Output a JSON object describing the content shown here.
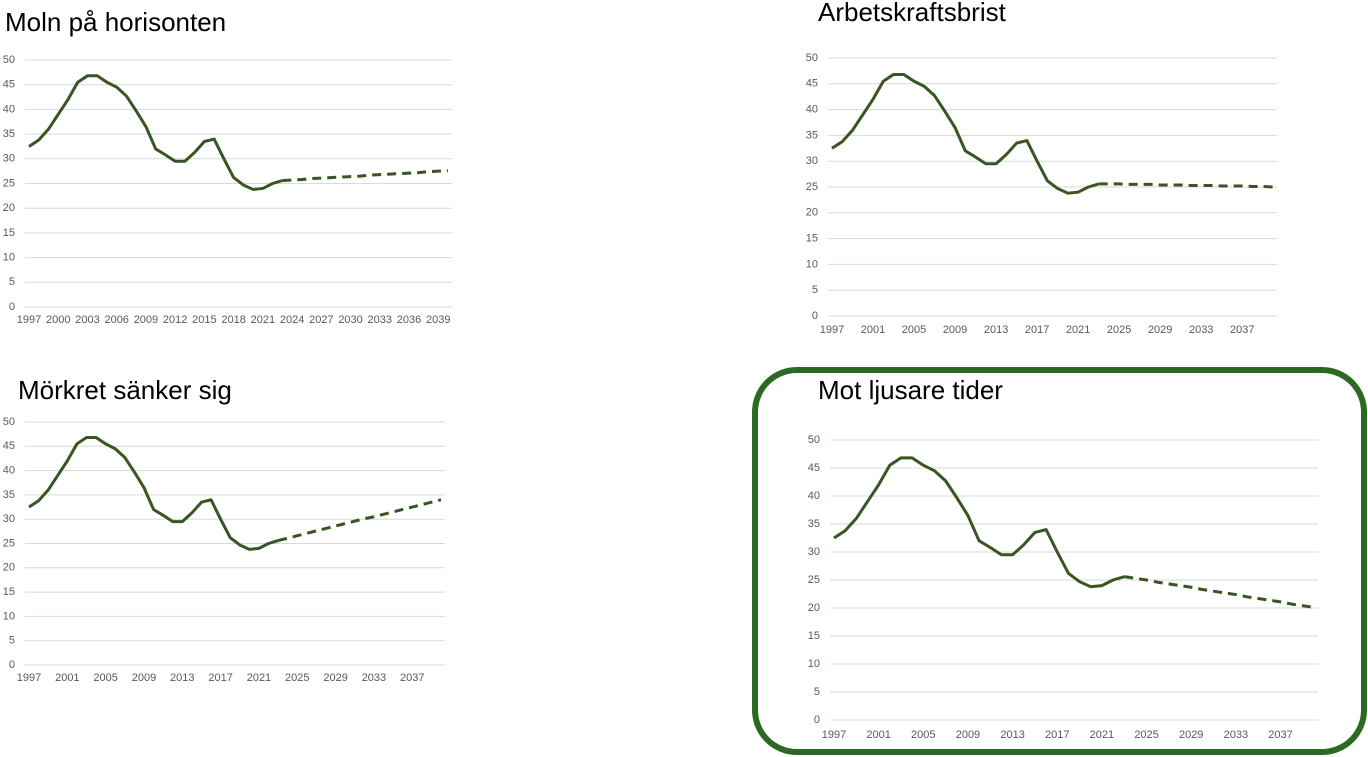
{
  "chart_data": [
    {
      "type": "line",
      "title": "Moln på horisonten",
      "x": [
        1997,
        1998,
        1999,
        2000,
        2001,
        2002,
        2003,
        2004,
        2005,
        2006,
        2007,
        2008,
        2009,
        2010,
        2011,
        2012,
        2013,
        2014,
        2015,
        2016,
        2017,
        2018,
        2019,
        2020,
        2021,
        2022,
        2023,
        2024,
        2025,
        2026,
        2027,
        2028,
        2029,
        2030,
        2031,
        2032,
        2033,
        2034,
        2035,
        2036,
        2037,
        2038,
        2039,
        2040
      ],
      "series": [
        {
          "color": "#375623",
          "dashed": false,
          "values": [
            32.5,
            33.8,
            36,
            39,
            42,
            45.5,
            46.8,
            46.8,
            45.5,
            44.5,
            42.7,
            39.7,
            36.5,
            32,
            30.8,
            29.5,
            29.5,
            31.3,
            33.5,
            34,
            30,
            26.2,
            24.7,
            23.8,
            24,
            25,
            25.6,
            null,
            null,
            null,
            null,
            null,
            null,
            null,
            null,
            null,
            null,
            null,
            null,
            null,
            null,
            null,
            null,
            null
          ]
        },
        {
          "color": "#375623",
          "dashed": true,
          "values": [
            null,
            null,
            null,
            null,
            null,
            null,
            null,
            null,
            null,
            null,
            null,
            null,
            null,
            null,
            null,
            null,
            null,
            null,
            null,
            null,
            null,
            null,
            null,
            null,
            null,
            null,
            25.6,
            25.7,
            25.8,
            26.0,
            26.1,
            26.2,
            26.3,
            26.4,
            26.5,
            26.7,
            26.8,
            26.9,
            27.0,
            27.1,
            27.2,
            27.4,
            27.5,
            27.6
          ]
        }
      ],
      "xlim": [
        1997,
        2040
      ],
      "xticks": [
        1997,
        2000,
        2003,
        2006,
        2009,
        2012,
        2015,
        2018,
        2021,
        2024,
        2027,
        2030,
        2033,
        2036,
        2039
      ],
      "ylim": [
        0,
        50
      ],
      "yticks": [
        0,
        5,
        10,
        15,
        20,
        25,
        30,
        35,
        40,
        45,
        50
      ],
      "grid": true
    },
    {
      "type": "line",
      "title": "Arbetskraftsbrist",
      "x": [
        1997,
        1998,
        1999,
        2000,
        2001,
        2002,
        2003,
        2004,
        2005,
        2006,
        2007,
        2008,
        2009,
        2010,
        2011,
        2012,
        2013,
        2014,
        2015,
        2016,
        2017,
        2018,
        2019,
        2020,
        2021,
        2022,
        2023,
        2024,
        2025,
        2026,
        2027,
        2028,
        2029,
        2030,
        2031,
        2032,
        2033,
        2034,
        2035,
        2036,
        2037,
        2038,
        2039,
        2040
      ],
      "series": [
        {
          "color": "#375623",
          "dashed": false,
          "values": [
            32.5,
            33.8,
            36,
            39,
            42,
            45.5,
            46.8,
            46.8,
            45.5,
            44.5,
            42.7,
            39.7,
            36.5,
            32,
            30.8,
            29.5,
            29.5,
            31.3,
            33.5,
            34,
            30,
            26.2,
            24.7,
            23.8,
            24,
            25,
            25.6,
            null,
            null,
            null,
            null,
            null,
            null,
            null,
            null,
            null,
            null,
            null,
            null,
            null,
            null,
            null,
            null,
            null
          ]
        },
        {
          "color": "#375623",
          "dashed": true,
          "values": [
            null,
            null,
            null,
            null,
            null,
            null,
            null,
            null,
            null,
            null,
            null,
            null,
            null,
            null,
            null,
            null,
            null,
            null,
            null,
            null,
            null,
            null,
            null,
            null,
            null,
            null,
            25.6,
            25.6,
            25.6,
            25.5,
            25.5,
            25.5,
            25.4,
            25.4,
            25.4,
            25.3,
            25.3,
            25.3,
            25.2,
            25.2,
            25.2,
            25.1,
            25.1,
            25.0
          ]
        }
      ],
      "xlim": [
        1997,
        2040
      ],
      "xticks": [
        1997,
        2001,
        2005,
        2009,
        2013,
        2017,
        2021,
        2025,
        2029,
        2033,
        2037
      ],
      "ylim": [
        0,
        50
      ],
      "yticks": [
        0,
        5,
        10,
        15,
        20,
        25,
        30,
        35,
        40,
        45,
        50
      ],
      "grid": true
    },
    {
      "type": "line",
      "title": "Mörkret sänker sig",
      "x": [
        1997,
        1998,
        1999,
        2000,
        2001,
        2002,
        2003,
        2004,
        2005,
        2006,
        2007,
        2008,
        2009,
        2010,
        2011,
        2012,
        2013,
        2014,
        2015,
        2016,
        2017,
        2018,
        2019,
        2020,
        2021,
        2022,
        2023,
        2024,
        2025,
        2026,
        2027,
        2028,
        2029,
        2030,
        2031,
        2032,
        2033,
        2034,
        2035,
        2036,
        2037,
        2038,
        2039,
        2040
      ],
      "series": [
        {
          "color": "#375623",
          "dashed": false,
          "values": [
            32.5,
            33.8,
            36,
            39,
            42,
            45.5,
            46.8,
            46.8,
            45.5,
            44.5,
            42.7,
            39.7,
            36.5,
            32,
            30.8,
            29.5,
            29.5,
            31.3,
            33.5,
            34,
            30,
            26.2,
            24.7,
            23.8,
            24,
            25,
            25.6,
            null,
            null,
            null,
            null,
            null,
            null,
            null,
            null,
            null,
            null,
            null,
            null,
            null,
            null,
            null,
            null,
            null
          ]
        },
        {
          "color": "#375623",
          "dashed": true,
          "values": [
            null,
            null,
            null,
            null,
            null,
            null,
            null,
            null,
            null,
            null,
            null,
            null,
            null,
            null,
            null,
            null,
            null,
            null,
            null,
            null,
            null,
            null,
            null,
            null,
            null,
            null,
            25.6,
            26.1,
            26.6,
            27.1,
            27.6,
            28.1,
            28.6,
            29.1,
            29.6,
            30.1,
            30.5,
            31.0,
            31.5,
            32.0,
            32.5,
            33.0,
            33.5,
            34.0
          ]
        }
      ],
      "xlim": [
        1997,
        2040
      ],
      "xticks": [
        1997,
        2001,
        2005,
        2009,
        2013,
        2017,
        2021,
        2025,
        2029,
        2033,
        2037
      ],
      "ylim": [
        0,
        50
      ],
      "yticks": [
        0,
        5,
        10,
        15,
        20,
        25,
        30,
        35,
        40,
        45,
        50
      ],
      "grid": true
    },
    {
      "type": "line",
      "title": "Mot ljusare tider",
      "x": [
        1997,
        1998,
        1999,
        2000,
        2001,
        2002,
        2003,
        2004,
        2005,
        2006,
        2007,
        2008,
        2009,
        2010,
        2011,
        2012,
        2013,
        2014,
        2015,
        2016,
        2017,
        2018,
        2019,
        2020,
        2021,
        2022,
        2023,
        2024,
        2025,
        2026,
        2027,
        2028,
        2029,
        2030,
        2031,
        2032,
        2033,
        2034,
        2035,
        2036,
        2037,
        2038,
        2039,
        2040
      ],
      "series": [
        {
          "color": "#375623",
          "dashed": false,
          "values": [
            32.5,
            33.8,
            36,
            39,
            42,
            45.5,
            46.8,
            46.8,
            45.5,
            44.5,
            42.7,
            39.7,
            36.5,
            32,
            30.8,
            29.5,
            29.5,
            31.3,
            33.5,
            34,
            30,
            26.2,
            24.7,
            23.8,
            24,
            25,
            25.6,
            null,
            null,
            null,
            null,
            null,
            null,
            null,
            null,
            null,
            null,
            null,
            null,
            null,
            null,
            null,
            null,
            null
          ]
        },
        {
          "color": "#375623",
          "dashed": true,
          "values": [
            null,
            null,
            null,
            null,
            null,
            null,
            null,
            null,
            null,
            null,
            null,
            null,
            null,
            null,
            null,
            null,
            null,
            null,
            null,
            null,
            null,
            null,
            null,
            null,
            null,
            null,
            25.6,
            25.3,
            25.0,
            24.6,
            24.3,
            24.0,
            23.7,
            23.3,
            23.0,
            22.7,
            22.4,
            22.0,
            21.7,
            21.4,
            21.1,
            20.7,
            20.4,
            20.1
          ]
        }
      ],
      "xlim": [
        1997,
        2040
      ],
      "xticks": [
        1997,
        2001,
        2005,
        2009,
        2013,
        2017,
        2021,
        2025,
        2029,
        2033,
        2037
      ],
      "ylim": [
        0,
        50
      ],
      "yticks": [
        0,
        5,
        10,
        15,
        20,
        25,
        30,
        35,
        40,
        45,
        50
      ],
      "grid": true
    }
  ]
}
